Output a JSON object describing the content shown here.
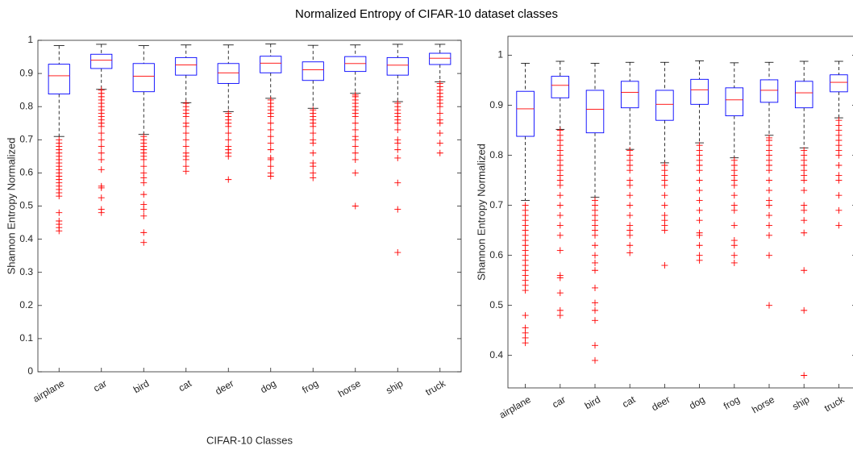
{
  "title": "Normalized Entropy of CIFAR-10 dataset classes",
  "chart_data": [
    {
      "type": "box",
      "xlabel": "CIFAR-10 Classes",
      "ylabel": "Shannon Entropy Normalized",
      "categories": [
        "airplane",
        "car",
        "bird",
        "cat",
        "deer",
        "dog",
        "frog",
        "horse",
        "ship",
        "truck"
      ],
      "ylim": [
        0,
        1
      ],
      "yticks": [
        0,
        {
          "value": 0.1,
          "label": "0.1"
        },
        {
          "value": 0.2,
          "label": "0.2"
        },
        {
          "value": 0.3,
          "label": "0.3"
        },
        {
          "value": 0.4,
          "label": "0.4"
        },
        {
          "value": 0.5,
          "label": "0.5"
        },
        {
          "value": 0.6,
          "label": "0.6"
        },
        {
          "value": 0.7,
          "label": "0.7"
        },
        {
          "value": 0.8,
          "label": "0.8"
        },
        {
          "value": 0.9,
          "label": "0.9"
        },
        1
      ],
      "box_color": "#0000ff",
      "median_color": "#ff0000",
      "outlier_color": "#ff0000",
      "boxes": [
        {
          "low": 0.71,
          "q1": 0.838,
          "median": 0.893,
          "q3": 0.928,
          "high": 0.984,
          "outliers": [
            0.7,
            0.69,
            0.68,
            0.67,
            0.66,
            0.65,
            0.64,
            0.63,
            0.62,
            0.61,
            0.6,
            0.59,
            0.58,
            0.57,
            0.56,
            0.55,
            0.54,
            0.53,
            0.48,
            0.455,
            0.445,
            0.435,
            0.425
          ]
        },
        {
          "low": 0.852,
          "q1": 0.915,
          "median": 0.94,
          "q3": 0.958,
          "high": 0.988,
          "outliers": [
            0.85,
            0.84,
            0.83,
            0.82,
            0.81,
            0.8,
            0.79,
            0.78,
            0.77,
            0.76,
            0.75,
            0.74,
            0.72,
            0.7,
            0.68,
            0.66,
            0.64,
            0.61,
            0.56,
            0.555,
            0.525,
            0.49,
            0.48
          ]
        },
        {
          "low": 0.716,
          "q1": 0.845,
          "median": 0.892,
          "q3": 0.93,
          "high": 0.984,
          "outliers": [
            0.71,
            0.7,
            0.69,
            0.68,
            0.67,
            0.66,
            0.65,
            0.64,
            0.62,
            0.6,
            0.585,
            0.57,
            0.535,
            0.505,
            0.49,
            0.47,
            0.42,
            0.39
          ]
        },
        {
          "low": 0.812,
          "q1": 0.895,
          "median": 0.926,
          "q3": 0.948,
          "high": 0.986,
          "outliers": [
            0.81,
            0.8,
            0.79,
            0.78,
            0.77,
            0.75,
            0.74,
            0.72,
            0.7,
            0.68,
            0.66,
            0.65,
            0.64,
            0.62,
            0.605
          ]
        },
        {
          "low": 0.785,
          "q1": 0.87,
          "median": 0.902,
          "q3": 0.93,
          "high": 0.986,
          "outliers": [
            0.78,
            0.77,
            0.76,
            0.75,
            0.74,
            0.72,
            0.7,
            0.68,
            0.67,
            0.66,
            0.65,
            0.58
          ]
        },
        {
          "low": 0.825,
          "q1": 0.902,
          "median": 0.931,
          "q3": 0.952,
          "high": 0.989,
          "outliers": [
            0.82,
            0.81,
            0.8,
            0.79,
            0.78,
            0.77,
            0.75,
            0.73,
            0.71,
            0.69,
            0.67,
            0.645,
            0.64,
            0.62,
            0.6,
            0.59
          ]
        },
        {
          "low": 0.795,
          "q1": 0.879,
          "median": 0.911,
          "q3": 0.935,
          "high": 0.985,
          "outliers": [
            0.79,
            0.78,
            0.77,
            0.76,
            0.75,
            0.74,
            0.72,
            0.7,
            0.69,
            0.66,
            0.63,
            0.62,
            0.6,
            0.585
          ]
        },
        {
          "low": 0.84,
          "q1": 0.906,
          "median": 0.93,
          "q3": 0.951,
          "high": 0.986,
          "outliers": [
            0.835,
            0.83,
            0.82,
            0.81,
            0.8,
            0.79,
            0.78,
            0.77,
            0.75,
            0.73,
            0.71,
            0.7,
            0.68,
            0.66,
            0.64,
            0.6,
            0.5
          ]
        },
        {
          "low": 0.815,
          "q1": 0.895,
          "median": 0.925,
          "q3": 0.948,
          "high": 0.988,
          "outliers": [
            0.81,
            0.8,
            0.79,
            0.78,
            0.77,
            0.76,
            0.75,
            0.73,
            0.7,
            0.69,
            0.67,
            0.645,
            0.57,
            0.49,
            0.36
          ]
        },
        {
          "low": 0.875,
          "q1": 0.927,
          "median": 0.946,
          "q3": 0.961,
          "high": 0.988,
          "outliers": [
            0.87,
            0.86,
            0.85,
            0.84,
            0.83,
            0.82,
            0.81,
            0.8,
            0.78,
            0.76,
            0.75,
            0.72,
            0.69,
            0.66
          ]
        }
      ]
    },
    {
      "type": "box",
      "xlabel": "CIFAR-10 Classes",
      "ylabel": "Shannon Entropy Normalized",
      "categories": [
        "airplane",
        "car",
        "bird",
        "cat",
        "deer",
        "dog",
        "frog",
        "horse",
        "ship",
        "truck"
      ],
      "ylim": [
        0.335,
        1.038
      ],
      "yticks": [
        {
          "value": 0.4,
          "label": "0.4"
        },
        {
          "value": 0.5,
          "label": "0.5"
        },
        {
          "value": 0.6,
          "label": "0.6"
        },
        {
          "value": 0.7,
          "label": "0.7"
        },
        {
          "value": 0.8,
          "label": "0.8"
        },
        {
          "value": 0.9,
          "label": "0.9"
        },
        1
      ],
      "box_color": "#0000ff",
      "median_color": "#ff0000",
      "outlier_color": "#ff0000",
      "boxes": [
        {
          "low": 0.71,
          "q1": 0.838,
          "median": 0.893,
          "q3": 0.928,
          "high": 0.984,
          "outliers": [
            0.7,
            0.69,
            0.68,
            0.67,
            0.66,
            0.65,
            0.64,
            0.63,
            0.62,
            0.61,
            0.6,
            0.59,
            0.58,
            0.57,
            0.56,
            0.55,
            0.54,
            0.53,
            0.48,
            0.455,
            0.445,
            0.435,
            0.425
          ]
        },
        {
          "low": 0.852,
          "q1": 0.915,
          "median": 0.94,
          "q3": 0.958,
          "high": 0.988,
          "outliers": [
            0.85,
            0.84,
            0.83,
            0.82,
            0.81,
            0.8,
            0.79,
            0.78,
            0.77,
            0.76,
            0.75,
            0.74,
            0.72,
            0.7,
            0.68,
            0.66,
            0.64,
            0.61,
            0.56,
            0.555,
            0.525,
            0.49,
            0.48
          ]
        },
        {
          "low": 0.716,
          "q1": 0.845,
          "median": 0.892,
          "q3": 0.93,
          "high": 0.984,
          "outliers": [
            0.71,
            0.7,
            0.69,
            0.68,
            0.67,
            0.66,
            0.65,
            0.64,
            0.62,
            0.6,
            0.585,
            0.57,
            0.535,
            0.505,
            0.49,
            0.47,
            0.42,
            0.39
          ]
        },
        {
          "low": 0.812,
          "q1": 0.895,
          "median": 0.926,
          "q3": 0.948,
          "high": 0.986,
          "outliers": [
            0.81,
            0.8,
            0.79,
            0.78,
            0.77,
            0.75,
            0.74,
            0.72,
            0.7,
            0.68,
            0.66,
            0.65,
            0.64,
            0.62,
            0.605
          ]
        },
        {
          "low": 0.785,
          "q1": 0.87,
          "median": 0.902,
          "q3": 0.93,
          "high": 0.986,
          "outliers": [
            0.78,
            0.77,
            0.76,
            0.75,
            0.74,
            0.72,
            0.7,
            0.68,
            0.67,
            0.66,
            0.65,
            0.58
          ]
        },
        {
          "low": 0.825,
          "q1": 0.902,
          "median": 0.931,
          "q3": 0.952,
          "high": 0.989,
          "outliers": [
            0.82,
            0.81,
            0.8,
            0.79,
            0.78,
            0.77,
            0.75,
            0.73,
            0.71,
            0.69,
            0.67,
            0.645,
            0.64,
            0.62,
            0.6,
            0.59
          ]
        },
        {
          "low": 0.795,
          "q1": 0.879,
          "median": 0.911,
          "q3": 0.935,
          "high": 0.985,
          "outliers": [
            0.79,
            0.78,
            0.77,
            0.76,
            0.75,
            0.74,
            0.72,
            0.7,
            0.69,
            0.66,
            0.63,
            0.62,
            0.6,
            0.585
          ]
        },
        {
          "low": 0.84,
          "q1": 0.906,
          "median": 0.93,
          "q3": 0.951,
          "high": 0.986,
          "outliers": [
            0.835,
            0.83,
            0.82,
            0.81,
            0.8,
            0.79,
            0.78,
            0.77,
            0.75,
            0.73,
            0.71,
            0.7,
            0.68,
            0.66,
            0.64,
            0.6,
            0.5
          ]
        },
        {
          "low": 0.815,
          "q1": 0.895,
          "median": 0.925,
          "q3": 0.948,
          "high": 0.988,
          "outliers": [
            0.81,
            0.8,
            0.79,
            0.78,
            0.77,
            0.76,
            0.75,
            0.73,
            0.7,
            0.69,
            0.67,
            0.645,
            0.57,
            0.49,
            0.36
          ]
        },
        {
          "low": 0.875,
          "q1": 0.927,
          "median": 0.946,
          "q3": 0.961,
          "high": 0.988,
          "outliers": [
            0.87,
            0.86,
            0.85,
            0.84,
            0.83,
            0.82,
            0.81,
            0.8,
            0.78,
            0.76,
            0.75,
            0.72,
            0.69,
            0.66
          ]
        }
      ]
    }
  ]
}
